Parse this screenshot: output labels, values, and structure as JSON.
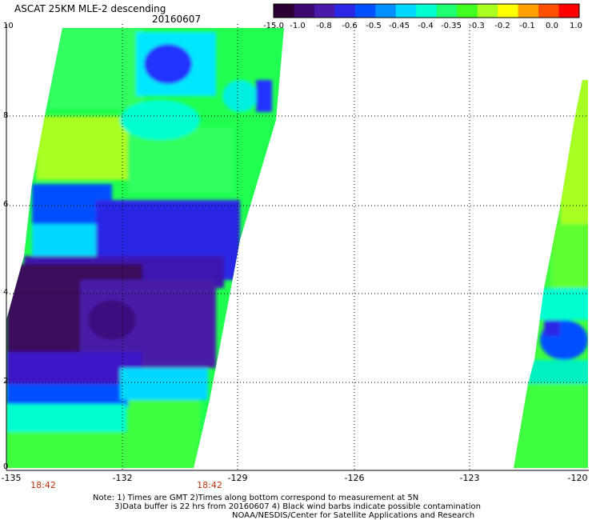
{
  "header": {
    "title": "ASCAT 25KM MLE-2 descending",
    "date": "20160607"
  },
  "colorbar": {
    "ticks": [
      "-15.0",
      "-1.0",
      "-0.8",
      "-0.6",
      "-0.5",
      "-0.45",
      "-0.4",
      "-0.35",
      "-0.3",
      "-0.2",
      "-0.1",
      "0.0",
      "1.0"
    ],
    "colors": [
      "#2a0033",
      "#3c0a6e",
      "#4a1aa8",
      "#2a28e6",
      "#0050ff",
      "#0090ff",
      "#00d8ff",
      "#00ffd0",
      "#20ff70",
      "#40ff20",
      "#a8ff20",
      "#ffff00",
      "#ffa000",
      "#ff5000",
      "#ff0000"
    ]
  },
  "axes": {
    "y_ticks": [
      "10",
      "8",
      "6",
      "4",
      "2",
      "0"
    ],
    "x_ticks": [
      "-135",
      "-132",
      "-129",
      "-126",
      "-123",
      "-120"
    ]
  },
  "times": [
    "18:42",
    "18:42"
  ],
  "notes": {
    "line1": "Note: 1) Times are GMT 2)Times along bottom correspond to measurement at 5N",
    "line2": "3)Data buffer is 22 hrs from 20160607 4) Black wind barbs indicate possible contamination",
    "line3": "NOAA/NESDIS/Center for Satellite Applications and Research"
  }
}
